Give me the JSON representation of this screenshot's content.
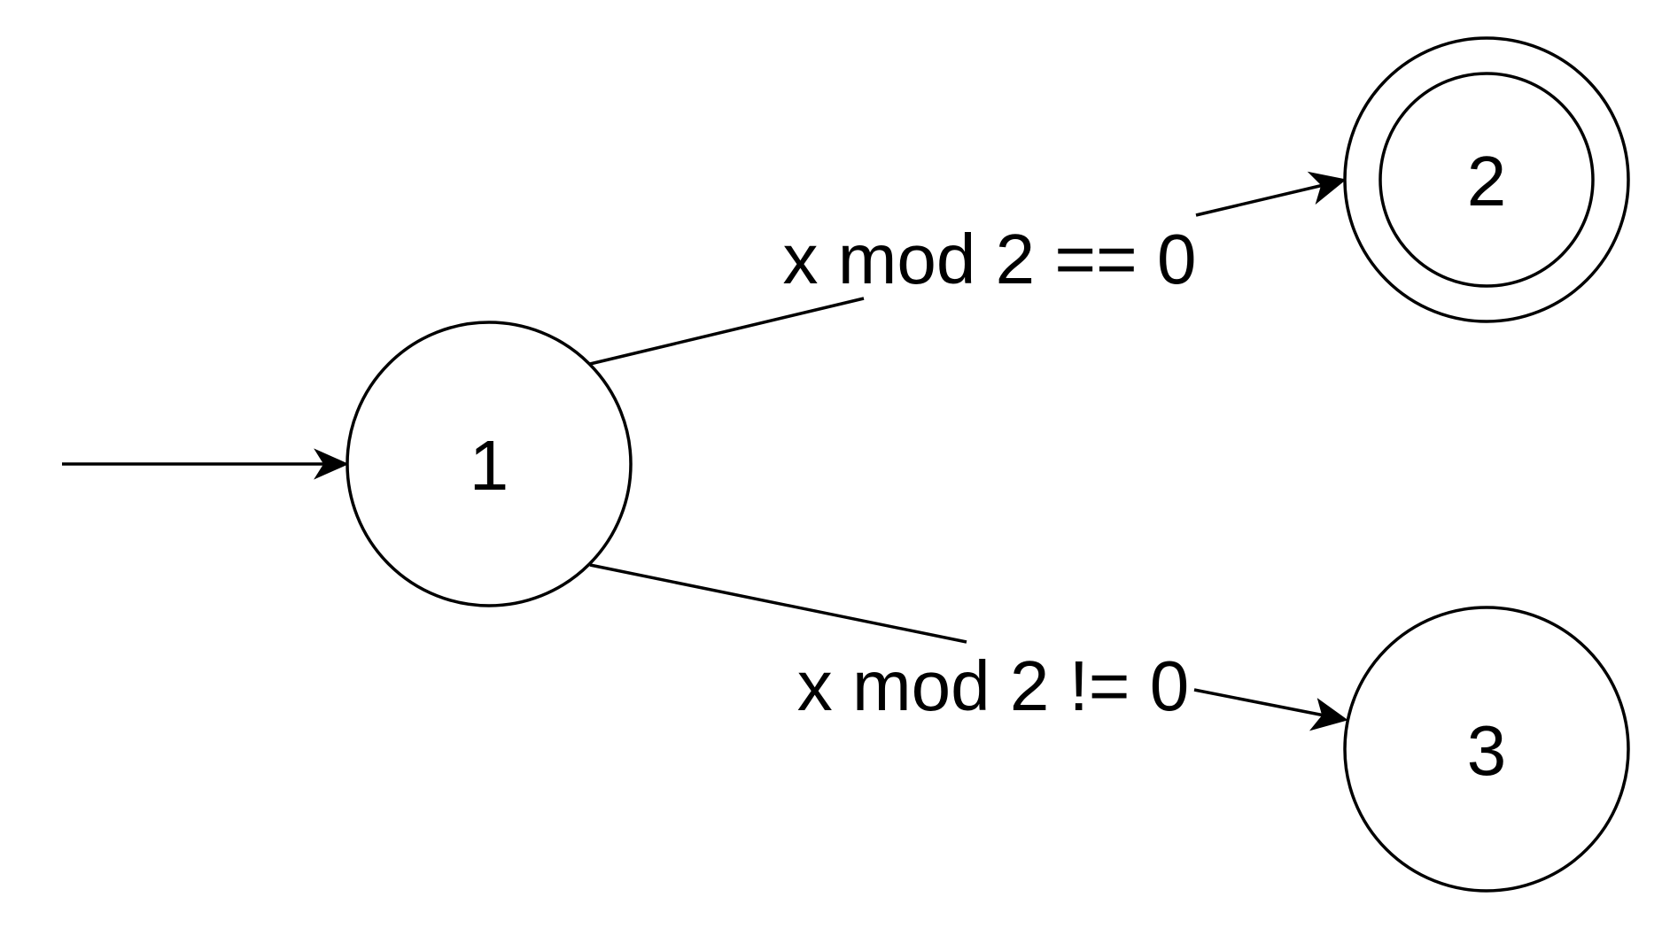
{
  "states": [
    {
      "id": "1",
      "label": "1",
      "initial": true,
      "accepting": false
    },
    {
      "id": "2",
      "label": "2",
      "initial": false,
      "accepting": true
    },
    {
      "id": "3",
      "label": "3",
      "initial": false,
      "accepting": false
    }
  ],
  "transitions": [
    {
      "from": "1",
      "to": "2",
      "label": "x mod 2 == 0"
    },
    {
      "from": "1",
      "to": "3",
      "label": "x mod 2 != 0"
    }
  ],
  "colors": {
    "stroke": "#000000",
    "fill": "#ffffff",
    "text": "#000000"
  }
}
